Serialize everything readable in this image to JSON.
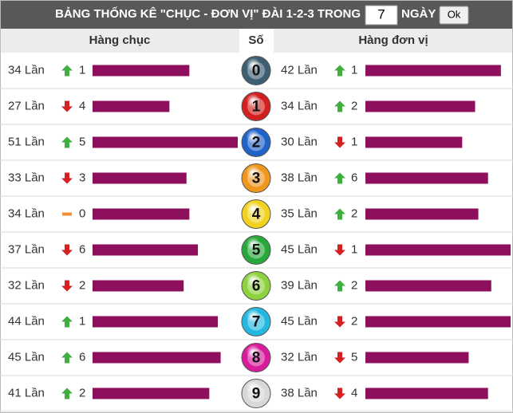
{
  "header": {
    "title": "BẢNG THỐNG KÊ \"CHỤC - ĐƠN VỊ\" ĐÀI 1-2-3 TRONG",
    "days": "7",
    "unit": "NGÀY",
    "button": "Ok"
  },
  "columns": {
    "tens": "Hàng chục",
    "digit": "Số",
    "units": "Hàng đơn vị"
  },
  "bar_color": "#8e0f5e",
  "rows": [
    {
      "digit": "0",
      "ball_color": "#3d5f73",
      "tens": {
        "count": {
          "value": 34,
          "label": "34 Lần"
        },
        "trend": "up",
        "change": 1
      },
      "units": {
        "count": {
          "value": 42,
          "label": "42 Lần"
        },
        "trend": "up",
        "change": 1
      }
    },
    {
      "digit": "1",
      "ball_color": "#d21f1f",
      "tens": {
        "count": {
          "value": 27,
          "label": "27 Lần"
        },
        "trend": "down",
        "change": 4
      },
      "units": {
        "count": {
          "value": 34,
          "label": "34 Lần"
        },
        "trend": "up",
        "change": 2
      }
    },
    {
      "digit": "2",
      "ball_color": "#1f63c9",
      "tens": {
        "count": {
          "value": 51,
          "label": "51 Lần"
        },
        "trend": "up",
        "change": 5
      },
      "units": {
        "count": {
          "value": 30,
          "label": "30 Lần"
        },
        "trend": "down",
        "change": 1
      }
    },
    {
      "digit": "3",
      "ball_color": "#f0961e",
      "tens": {
        "count": {
          "value": 33,
          "label": "33 Lần"
        },
        "trend": "down",
        "change": 3
      },
      "units": {
        "count": {
          "value": 38,
          "label": "38 Lần"
        },
        "trend": "up",
        "change": 6
      }
    },
    {
      "digit": "4",
      "ball_color": "#f2d21e",
      "tens": {
        "count": {
          "value": 34,
          "label": "34 Lần"
        },
        "trend": "flat",
        "change": 0
      },
      "units": {
        "count": {
          "value": 35,
          "label": "35 Lần"
        },
        "trend": "up",
        "change": 2
      }
    },
    {
      "digit": "5",
      "ball_color": "#28a83a",
      "tens": {
        "count": {
          "value": 37,
          "label": "37 Lần"
        },
        "trend": "down",
        "change": 6
      },
      "units": {
        "count": {
          "value": 45,
          "label": "45 Lần"
        },
        "trend": "down",
        "change": 1
      }
    },
    {
      "digit": "6",
      "ball_color": "#8cd23c",
      "tens": {
        "count": {
          "value": 32,
          "label": "32 Lần"
        },
        "trend": "down",
        "change": 2
      },
      "units": {
        "count": {
          "value": 39,
          "label": "39 Lần"
        },
        "trend": "up",
        "change": 2
      }
    },
    {
      "digit": "7",
      "ball_color": "#22b8e0",
      "tens": {
        "count": {
          "value": 44,
          "label": "44 Lần"
        },
        "trend": "up",
        "change": 1
      },
      "units": {
        "count": {
          "value": 45,
          "label": "45 Lần"
        },
        "trend": "down",
        "change": 2
      }
    },
    {
      "digit": "8",
      "ball_color": "#d91c9c",
      "tens": {
        "count": {
          "value": 45,
          "label": "45 Lần"
        },
        "trend": "up",
        "change": 6
      },
      "units": {
        "count": {
          "value": 32,
          "label": "32 Lần"
        },
        "trend": "down",
        "change": 5
      }
    },
    {
      "digit": "9",
      "ball_color": "#d8d8d8",
      "tens": {
        "count": {
          "value": 41,
          "label": "41 Lần"
        },
        "trend": "up",
        "change": 2
      },
      "units": {
        "count": {
          "value": 38,
          "label": "38 Lần"
        },
        "trend": "down",
        "change": 4
      }
    }
  ]
}
